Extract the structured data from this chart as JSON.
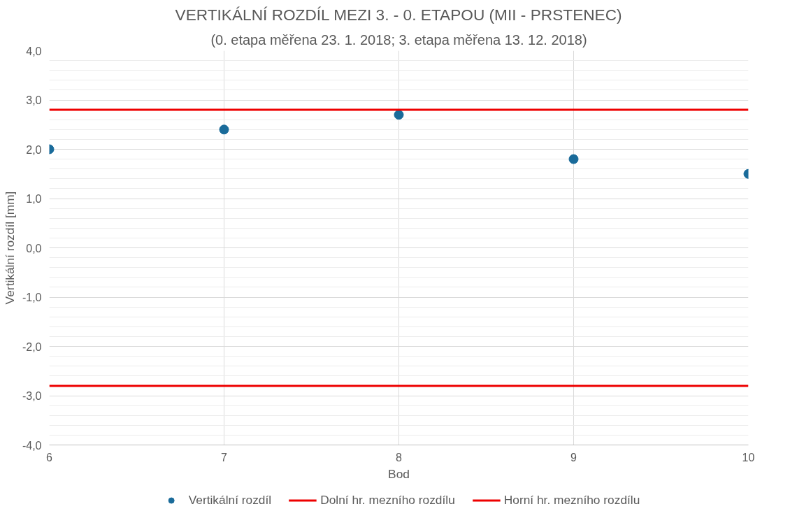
{
  "chart_data": {
    "type": "scatter",
    "title": "VERTIKÁLNÍ ROZDÍL MEZI 3. - 0. ETAPOU (MII - PRSTENEC)",
    "subtitle": "(0. etapa měřena 23. 1. 2018; 3. etapa měřena 13. 12. 2018)",
    "xlabel": "Bod",
    "ylabel": "Vertikální rozdíl [mm]",
    "x": [
      6,
      7,
      8,
      9,
      10
    ],
    "series": [
      {
        "name": "Vertikální rozdíl",
        "color": "#1a6b9a",
        "values": [
          2.0,
          2.4,
          2.7,
          1.8,
          1.5
        ]
      }
    ],
    "ref_lines": [
      {
        "axis": "y",
        "value": -2.8,
        "label": "Dolní hr. mezního rozdílu",
        "color": "#ee0000",
        "line_style": "solid"
      },
      {
        "axis": "y",
        "value": 2.8,
        "label": "Horní hr. mezního rozdílu",
        "color": "#ee0000",
        "line_style": "solid"
      }
    ],
    "marker": "circle",
    "xlim": [
      6,
      10
    ],
    "xticks": [
      6,
      7,
      8,
      9,
      10
    ],
    "ylim": [
      -4,
      4
    ],
    "yticks": [
      {
        "value": -4,
        "label": "-4,0"
      },
      {
        "value": -3,
        "label": "-3,0"
      },
      {
        "value": -2,
        "label": "-2,0"
      },
      {
        "value": -1,
        "label": "-1,0"
      },
      {
        "value": 0,
        "label": "0,0"
      },
      {
        "value": 1,
        "label": "1,0"
      },
      {
        "value": 2,
        "label": "2,0"
      },
      {
        "value": 3,
        "label": "3,0"
      },
      {
        "value": 4,
        "label": "4,0"
      }
    ],
    "grid": true,
    "legend": "bottom"
  }
}
